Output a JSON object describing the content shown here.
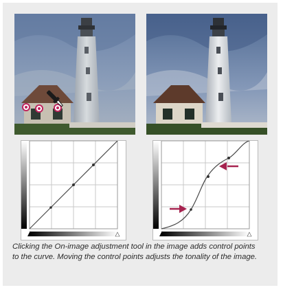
{
  "caption": "Clicking the On-image adjustment tool in the image adds control points to the curve. Moving the control points adjusts the tonality of the image.",
  "colors": {
    "background_panel": "#ececec",
    "sky": "#7f94b2",
    "marker_ring": "#c0245e",
    "arrow": "#a6234f",
    "curve_line": "#4a4a4a",
    "grid_line": "#c8c8c8"
  },
  "icons": [
    "eyedropper-icon",
    "sample-marker-icon",
    "arrow-pointer-icon"
  ]
}
